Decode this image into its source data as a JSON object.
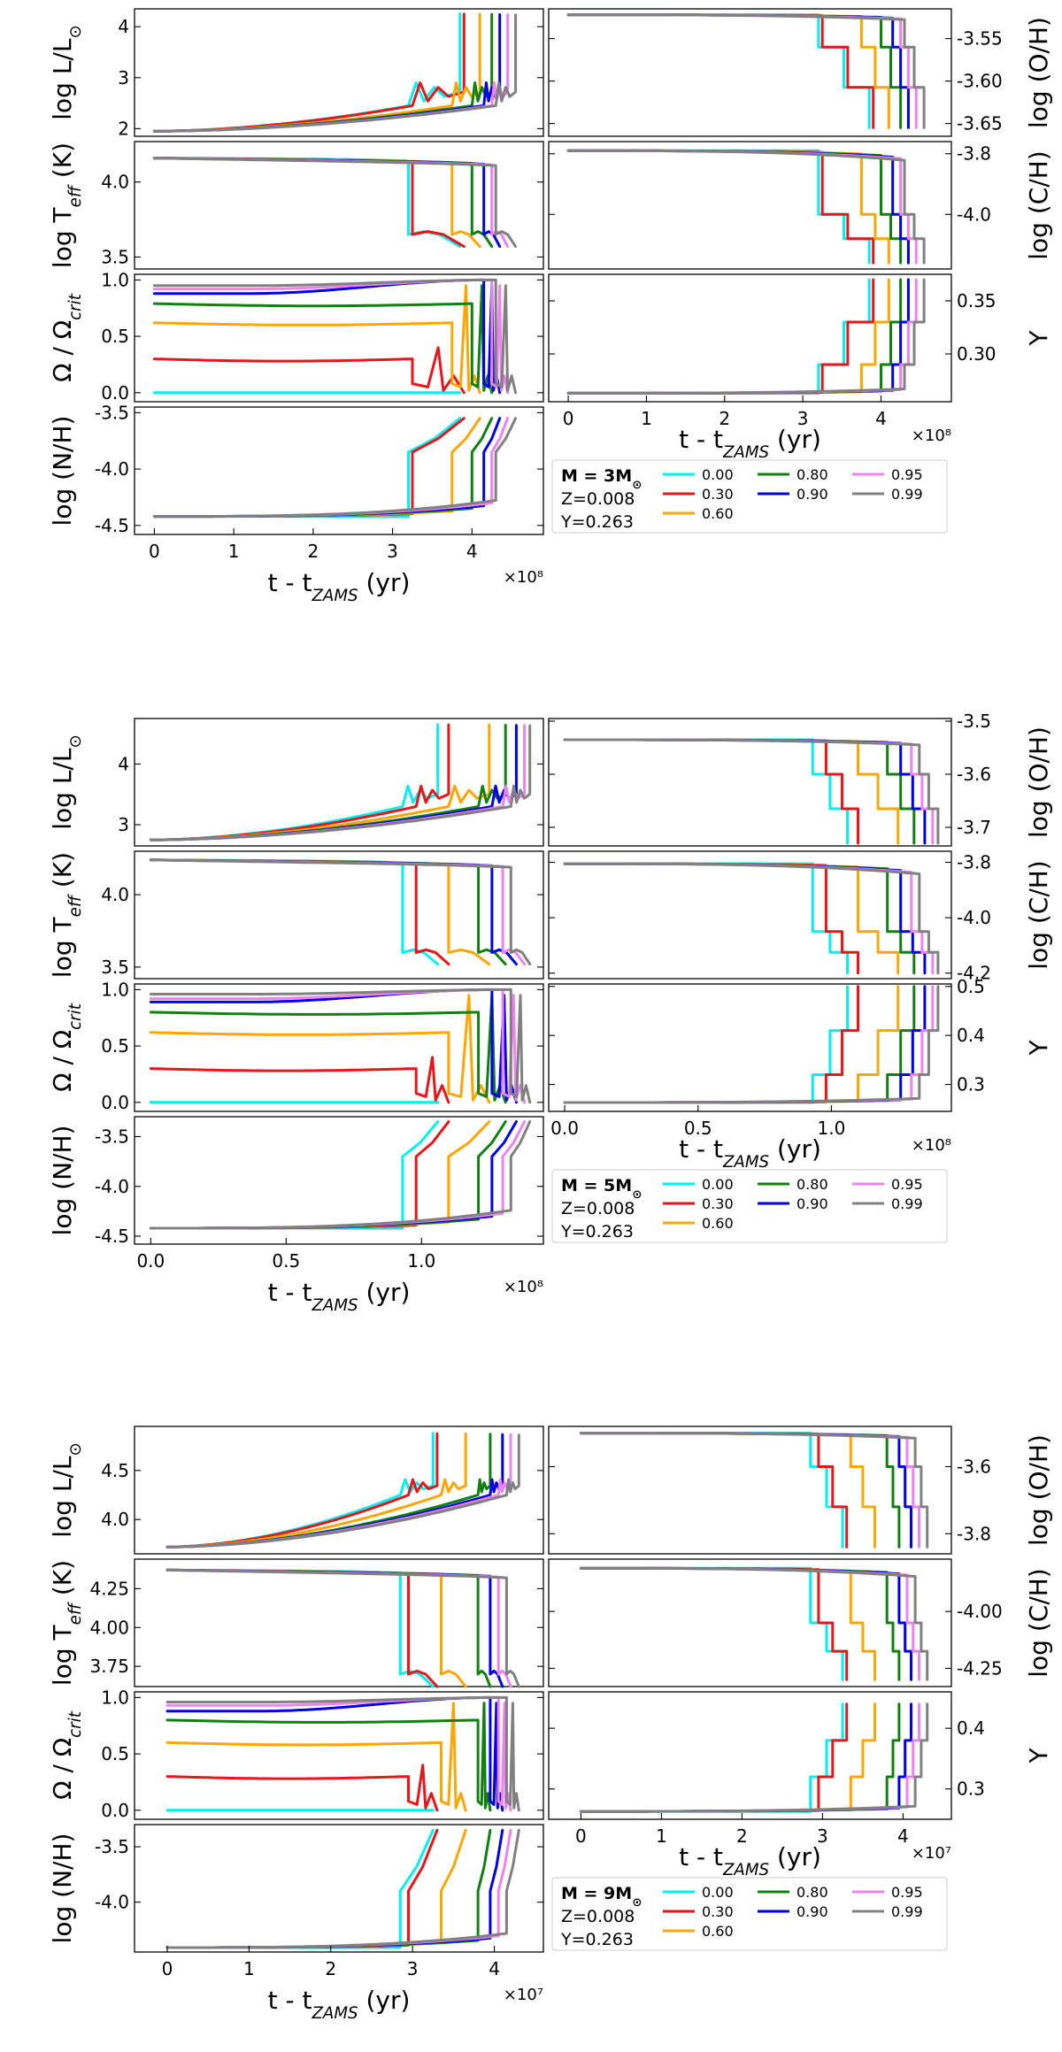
{
  "colors": {
    "0.00": "#00f0f0",
    "0.30": "#e8161b",
    "0.60": "#ffa500",
    "0.80": "#108010",
    "0.90": "#0000e8",
    "0.95": "#ee82ee",
    "0.99": "#808080"
  },
  "chart_data": [
    {
      "type": "line",
      "title": "M = 3M⊙",
      "legend": {
        "mass_label": "M = 3M",
        "sun": "⊙",
        "z_label": "Z=0.008",
        "y_label": "Y=0.263",
        "placement": "lower-right",
        "entries": [
          "0.00",
          "0.30",
          "0.60",
          "0.80",
          "0.90",
          "0.95",
          "0.99"
        ]
      },
      "x_scale_label": "×10⁸",
      "xlim": [
        -0.25,
        4.9
      ],
      "xticks": [
        0,
        1,
        2,
        3,
        4
      ],
      "xtick_labels": [
        "0",
        "1",
        "2",
        "3",
        "4"
      ],
      "x_label_main": "t - t",
      "x_label_sub": "ZAMS",
      "x_label_unit": " (yr)",
      "series_end_x": {
        "0.00": 3.85,
        "0.30": 3.9,
        "0.60": 4.1,
        "0.80": 4.25,
        "0.90": 4.35,
        "0.95": 4.45,
        "0.99": 4.55
      },
      "series_jump_x": {
        "0.00": 3.2,
        "0.30": 3.25,
        "0.60": 3.75,
        "0.80": 4.0,
        "0.90": 4.15,
        "0.95": 4.25,
        "0.99": 4.3
      },
      "omega0": {
        "0.00": 0.0,
        "0.30": 0.3,
        "0.60": 0.62,
        "0.80": 0.79,
        "0.90": 0.88,
        "0.95": 0.92,
        "0.99": 0.95
      },
      "panels": {
        "L": {
          "ylabel": "log L/L",
          "ylabel_sun": "⊙",
          "ylim": [
            1.85,
            4.35
          ],
          "yticks": [
            2,
            3,
            4
          ],
          "ytick_labels": [
            "2",
            "3",
            "4"
          ],
          "start": 1.95,
          "jump": 2.45,
          "top": 4.25
        },
        "Teff": {
          "ylabel": "log T",
          "ylabel_sub": "eff",
          "ylabel_unit": " (K)",
          "ylim": [
            3.42,
            4.27
          ],
          "yticks": [
            3.5,
            4.0
          ],
          "ytick_labels": [
            "3.5",
            "4.0"
          ],
          "start": 4.16,
          "jump": 3.65
        },
        "Omega": {
          "ylabel": "Ω / Ω",
          "ylabel_sub": "crit",
          "ylim": [
            -0.08,
            1.05
          ],
          "yticks": [
            0.0,
            0.5,
            1.0
          ],
          "ytick_labels": [
            "0.0",
            "0.5",
            "1.0"
          ]
        },
        "NH": {
          "ylabel": "log (N/H)",
          "ylim": [
            -4.58,
            -3.45
          ],
          "yticks": [
            -4.5,
            -4.0,
            -3.5
          ],
          "ytick_labels": [
            "-4.5",
            "-4.0",
            "-3.5"
          ],
          "start": -4.42,
          "jump": -3.85,
          "top": -3.55
        },
        "OH": {
          "ylabel": "log (O/H)",
          "ylim": [
            -3.665,
            -3.515
          ],
          "yticks": [
            -3.55,
            -3.6,
            -3.65
          ],
          "ytick_labels": [
            "-3.55",
            "-3.60",
            "-3.65"
          ],
          "start": -3.522,
          "jump": -3.56,
          "end": -3.655
        },
        "CH": {
          "ylabel": "log (C/H)",
          "ylim": [
            -4.18,
            -3.76
          ],
          "yticks": [
            -3.8,
            -4.0
          ],
          "ytick_labels": [
            "-3.8",
            "-4.0"
          ],
          "start": -3.79,
          "jump": -4.0,
          "end": -4.16
        },
        "Y": {
          "ylabel": "Y",
          "ylim": [
            0.255,
            0.375
          ],
          "yticks": [
            0.3,
            0.35
          ],
          "ytick_labels": [
            "0.30",
            "0.35"
          ],
          "start": 0.263,
          "jump": 0.29,
          "end": 0.37
        }
      }
    },
    {
      "type": "line",
      "title": "M = 5M⊙",
      "legend": {
        "mass_label": "M = 5M",
        "sun": "⊙",
        "z_label": "Z=0.008",
        "y_label": "Y=0.263",
        "placement": "lower-right",
        "entries": [
          "0.00",
          "0.30",
          "0.60",
          "0.80",
          "0.90",
          "0.95",
          "0.99"
        ]
      },
      "x_scale_label": "×10⁸",
      "xlim": [
        -0.06,
        1.45
      ],
      "xticks": [
        0,
        0.5,
        1.0
      ],
      "xtick_labels": [
        "0.0",
        "0.5",
        "1.0"
      ],
      "x_label_main": "t - t",
      "x_label_sub": "ZAMS",
      "x_label_unit": " (yr)",
      "series_end_x": {
        "0.00": 1.06,
        "0.30": 1.1,
        "0.60": 1.25,
        "0.80": 1.31,
        "0.90": 1.35,
        "0.95": 1.38,
        "0.99": 1.4
      },
      "series_jump_x": {
        "0.00": 0.93,
        "0.30": 0.98,
        "0.60": 1.1,
        "0.80": 1.21,
        "0.90": 1.26,
        "0.95": 1.3,
        "0.99": 1.33
      },
      "omega0": {
        "0.00": 0.0,
        "0.30": 0.3,
        "0.60": 0.62,
        "0.80": 0.8,
        "0.90": 0.89,
        "0.95": 0.92,
        "0.99": 0.96
      },
      "panels": {
        "L": {
          "ylabel": "log L/L",
          "ylabel_sun": "⊙",
          "ylim": [
            2.65,
            4.75
          ],
          "yticks": [
            3,
            4
          ],
          "ytick_labels": [
            "3",
            "4"
          ],
          "start": 2.75,
          "jump": 3.3,
          "top": 4.65
        },
        "Teff": {
          "ylabel": "log T",
          "ylabel_sub": "eff",
          "ylabel_unit": " (K)",
          "ylim": [
            3.42,
            4.3
          ],
          "yticks": [
            3.5,
            4.0
          ],
          "ytick_labels": [
            "3.5",
            "4.0"
          ],
          "start": 4.24,
          "jump": 3.6
        },
        "Omega": {
          "ylabel": "Ω / Ω",
          "ylabel_sub": "crit",
          "ylim": [
            -0.08,
            1.05
          ],
          "yticks": [
            0.0,
            0.5,
            1.0
          ],
          "ytick_labels": [
            "0.0",
            "0.5",
            "1.0"
          ]
        },
        "NH": {
          "ylabel": "log (N/H)",
          "ylim": [
            -4.58,
            -3.3
          ],
          "yticks": [
            -4.5,
            -4.0,
            -3.5
          ],
          "ytick_labels": [
            "-4.5",
            "-4.0",
            "-3.5"
          ],
          "start": -4.42,
          "jump": -3.7,
          "top": -3.35
        },
        "OH": {
          "ylabel": "log (O/H)",
          "ylim": [
            -3.735,
            -3.495
          ],
          "yticks": [
            -3.5,
            -3.6,
            -3.7
          ],
          "ytick_labels": [
            "-3.5",
            "-3.6",
            "-3.7"
          ],
          "start": -3.535,
          "jump": -3.6,
          "end": -3.73
        },
        "CH": {
          "ylabel": "log (C/H)",
          "ylim": [
            -4.22,
            -3.76
          ],
          "yticks": [
            -3.8,
            -4.0,
            -4.2
          ],
          "ytick_labels": [
            "-3.8",
            "-4.0",
            "-4.2"
          ],
          "start": -3.805,
          "jump": -4.05,
          "end": -4.2
        },
        "Y": {
          "ylabel": "Y",
          "ylim": [
            0.245,
            0.505
          ],
          "yticks": [
            0.3,
            0.4,
            0.5
          ],
          "ytick_labels": [
            "0.3",
            "0.4",
            "0.5"
          ],
          "start": 0.263,
          "jump": 0.32,
          "end": 0.5
        }
      }
    },
    {
      "type": "line",
      "title": "M = 9M⊙",
      "legend": {
        "mass_label": "M = 9M",
        "sun": "⊙",
        "z_label": "Z=0.008",
        "y_label": "Y=0.263",
        "placement": "lower-right",
        "entries": [
          "0.00",
          "0.30",
          "0.60",
          "0.80",
          "0.90",
          "0.95",
          "0.99"
        ]
      },
      "x_scale_label": "×10⁷",
      "xlim": [
        -0.4,
        4.6
      ],
      "xticks": [
        0,
        1,
        2,
        3,
        4
      ],
      "xtick_labels": [
        "0",
        "1",
        "2",
        "3",
        "4"
      ],
      "x_label_main": "t - t",
      "x_label_sub": "ZAMS",
      "x_label_unit": " (yr)",
      "series_end_x": {
        "0.00": 3.25,
        "0.30": 3.3,
        "0.60": 3.65,
        "0.80": 3.95,
        "0.90": 4.1,
        "0.95": 4.2,
        "0.99": 4.3
      },
      "series_jump_x": {
        "0.00": 2.85,
        "0.30": 2.95,
        "0.60": 3.35,
        "0.80": 3.8,
        "0.90": 3.95,
        "0.95": 4.05,
        "0.99": 4.15
      },
      "omega0": {
        "0.00": 0.0,
        "0.30": 0.3,
        "0.60": 0.6,
        "0.80": 0.8,
        "0.90": 0.88,
        "0.95": 0.93,
        "0.99": 0.96
      },
      "panels": {
        "L": {
          "ylabel": "log L/L",
          "ylabel_sun": "⊙",
          "ylim": [
            3.65,
            4.95
          ],
          "yticks": [
            4.0,
            4.5
          ],
          "ytick_labels": [
            "4.0",
            "4.5"
          ],
          "start": 3.72,
          "jump": 4.25,
          "top": 4.88
        },
        "Teff": {
          "ylabel": "log T",
          "ylabel_sub": "eff",
          "ylabel_unit": " (K)",
          "ylim": [
            3.62,
            4.44
          ],
          "yticks": [
            3.75,
            4.0,
            4.25
          ],
          "ytick_labels": [
            "3.75",
            "4.00",
            "4.25"
          ],
          "start": 4.37,
          "jump": 3.7
        },
        "Omega": {
          "ylabel": "Ω / Ω",
          "ylabel_sub": "crit",
          "ylim": [
            -0.08,
            1.05
          ],
          "yticks": [
            0.0,
            0.5,
            1.0
          ],
          "ytick_labels": [
            "0.0",
            "0.5",
            "1.0"
          ]
        },
        "NH": {
          "ylabel": "log (N/H)",
          "ylim": [
            -4.45,
            -3.3
          ],
          "yticks": [
            -4.0,
            -3.5
          ],
          "ytick_labels": [
            "-4.0",
            "-3.5"
          ],
          "start": -4.41,
          "jump": -3.9,
          "top": -3.35
        },
        "OH": {
          "ylabel": "log (O/H)",
          "ylim": [
            -3.86,
            -3.48
          ],
          "yticks": [
            -3.6,
            -3.8
          ],
          "ytick_labels": [
            "-3.6",
            "-3.8"
          ],
          "start": -3.5,
          "jump": -3.6,
          "end": -3.84
        },
        "CH": {
          "ylabel": "log (C/H)",
          "ylim": [
            -4.33,
            -3.77
          ],
          "yticks": [
            -4.0,
            -4.25
          ],
          "ytick_labels": [
            "-4.00",
            "-4.25"
          ],
          "start": -3.81,
          "jump": -4.05,
          "end": -4.3
        },
        "Y": {
          "ylabel": "Y",
          "ylim": [
            0.25,
            0.46
          ],
          "yticks": [
            0.3,
            0.4
          ],
          "ytick_labels": [
            "0.3",
            "0.4"
          ],
          "start": 0.263,
          "jump": 0.32,
          "end": 0.44
        }
      }
    }
  ]
}
